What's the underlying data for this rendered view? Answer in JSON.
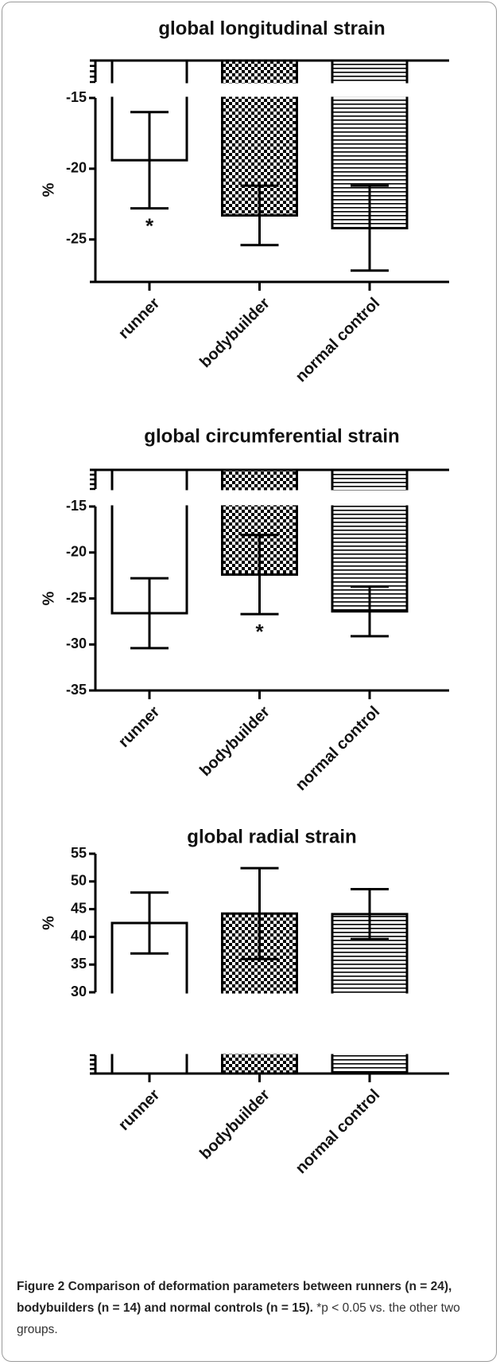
{
  "chart_data": [
    {
      "type": "bar",
      "title": "global longitudinal strain",
      "ylabel": "%",
      "categories": [
        "runner",
        "bodybuilder",
        "normal control"
      ],
      "values": [
        -19.4,
        -23.3,
        -24.2
      ],
      "errors": [
        3.4,
        2.1,
        3.0
      ],
      "color": "#000000",
      "ylim": [
        -28,
        -15
      ],
      "yticks": [
        -15,
        -20,
        -25
      ],
      "annotations": [
        {
          "text": "*",
          "x": "runner"
        }
      ]
    },
    {
      "type": "bar",
      "title": "global circumferential strain",
      "ylabel": "%",
      "categories": [
        "runner",
        "bodybuilder",
        "normal control"
      ],
      "values": [
        -26.6,
        -22.4,
        -26.4
      ],
      "errors": [
        3.8,
        4.3,
        2.7
      ],
      "color": "#000000",
      "ylim": [
        -35,
        -15
      ],
      "yticks": [
        -15,
        -20,
        -25,
        -30,
        -35
      ],
      "annotations": [
        {
          "text": "*",
          "x": "bodybuilder"
        }
      ]
    },
    {
      "type": "bar",
      "title": "global radial strain",
      "ylabel": "%",
      "categories": [
        "runner",
        "bodybuilder",
        "normal control"
      ],
      "values": [
        42.5,
        44.2,
        44.1
      ],
      "errors": [
        5.5,
        8.2,
        4.5
      ],
      "color": "#000000",
      "ylim": [
        30,
        55
      ],
      "yticks": [
        30,
        35,
        40,
        45,
        50,
        55
      ],
      "annotations": []
    }
  ],
  "caption": {
    "label": "Figure 2",
    "title": "Comparison of deformation parameters between runners (n = 24), bodybuilders (n = 14) and normal controls (n = 15).",
    "text": "*p < 0.05 vs. the other two groups."
  }
}
